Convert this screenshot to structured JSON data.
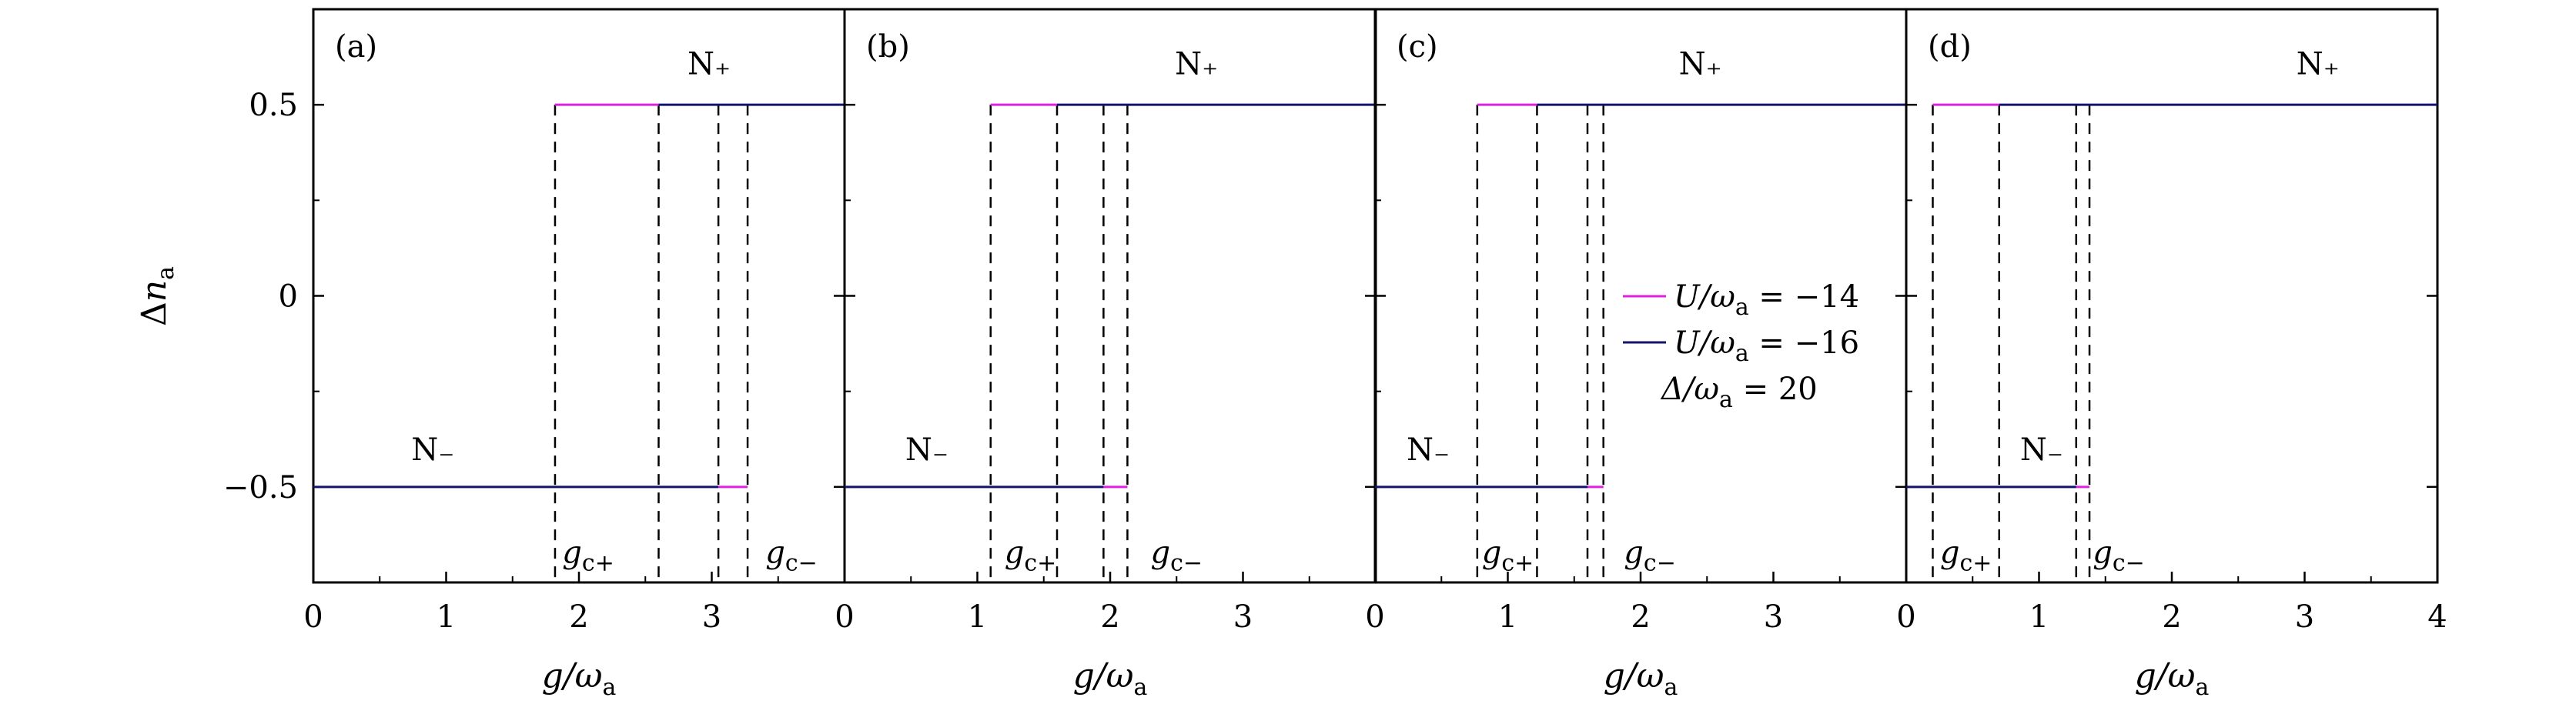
{
  "chart_data": {
    "type": "line",
    "ylabel": "Δn_a",
    "xlabel": "g/ω_a",
    "ylim": [
      -0.75,
      0.75
    ],
    "yticks": [
      0.5,
      0,
      -0.5
    ],
    "ytick_labels": [
      "0.5",
      "0",
      "−0.5"
    ],
    "legend": {
      "placement": "center (panel c)",
      "entries": [
        {
          "label": "U/ω_a = −14",
          "color": "#e020e0"
        },
        {
          "label": "U/ω_a = −16",
          "color": "#14146e"
        }
      ],
      "extra_text": "Δ/ω_a = 20"
    },
    "panels": [
      {
        "label": "(a)",
        "xlim": [
          0,
          4
        ],
        "xticks": [
          0,
          1,
          2,
          3
        ],
        "xtick_labels": [
          "0",
          "1",
          "2",
          "3"
        ],
        "series": [
          {
            "name": "U/ω_a = −14",
            "x": [
              0,
              1.82,
              1.82,
              4
            ],
            "y": [
              -0.5,
              -0.5,
              0.5,
              0.5
            ],
            "lower_end": 3.27
          },
          {
            "name": "U/ω_a = −16",
            "x": [
              0,
              3.05,
              3.05,
              4
            ],
            "y": [
              -0.5,
              -0.5,
              0.5,
              0.5
            ],
            "upper_start": 2.6
          }
        ],
        "dashed_lines_x": [
          1.82,
          2.6,
          3.05,
          3.27
        ],
        "annotations": [
          {
            "text": "N₊",
            "x": 2.98,
            "y": 0.58
          },
          {
            "text": "N₋",
            "x": 0.9,
            "y": -0.43
          },
          {
            "text": "g_c+",
            "x": 2.07,
            "y": -0.67
          },
          {
            "text": "g_c−",
            "x": 3.6,
            "y": -0.67
          }
        ]
      },
      {
        "label": "(b)",
        "xlim": [
          0,
          4
        ],
        "xticks": [
          0,
          1,
          2,
          3
        ],
        "xtick_labels": [
          "0",
          "1",
          "2",
          "3"
        ],
        "series": [
          {
            "name": "U/ω_a = −14",
            "x": [
              0,
              1.1,
              1.1,
              4
            ],
            "y": [
              -0.5,
              -0.5,
              0.5,
              0.5
            ],
            "lower_end": 2.13
          },
          {
            "name": "U/ω_a = −16",
            "x": [
              0,
              1.95,
              1.95,
              4
            ],
            "y": [
              -0.5,
              -0.5,
              0.5,
              0.5
            ],
            "upper_start": 1.6
          }
        ],
        "dashed_lines_x": [
          1.1,
          1.6,
          1.95,
          2.13
        ],
        "annotations": [
          {
            "text": "N₊",
            "x": 2.65,
            "y": 0.58
          },
          {
            "text": "N₋",
            "x": 0.62,
            "y": -0.43
          },
          {
            "text": "g_c+",
            "x": 1.4,
            "y": -0.67
          },
          {
            "text": "g_c−",
            "x": 2.5,
            "y": -0.67
          }
        ]
      },
      {
        "label": "(c)",
        "xlim": [
          0,
          4
        ],
        "xticks": [
          0,
          1,
          2,
          3
        ],
        "xtick_labels": [
          "0",
          "1",
          "2",
          "3"
        ],
        "series": [
          {
            "name": "U/ω_a = −14",
            "x": [
              0,
              0.77,
              0.77,
              4
            ],
            "y": [
              -0.5,
              -0.5,
              0.5,
              0.5
            ],
            "lower_end": 1.72
          },
          {
            "name": "U/ω_a = −16",
            "x": [
              0,
              1.6,
              1.6,
              4
            ],
            "y": [
              -0.5,
              -0.5,
              0.5,
              0.5
            ],
            "upper_start": 1.22
          }
        ],
        "dashed_lines_x": [
          0.77,
          1.22,
          1.6,
          1.72
        ],
        "annotations": [
          {
            "text": "N₊",
            "x": 2.45,
            "y": 0.58
          },
          {
            "text": "N₋",
            "x": 0.4,
            "y": -0.43
          },
          {
            "text": "g_c+",
            "x": 1.0,
            "y": -0.67
          },
          {
            "text": "g_c−",
            "x": 2.07,
            "y": -0.67
          }
        ]
      },
      {
        "label": "(d)",
        "xlim": [
          0,
          4
        ],
        "xticks": [
          0,
          1,
          2,
          3,
          4
        ],
        "xtick_labels": [
          "0",
          "1",
          "2",
          "3",
          "4"
        ],
        "series": [
          {
            "name": "U/ω_a = −14",
            "x": [
              0,
              0.2,
              0.2,
              4
            ],
            "y": [
              -0.5,
              -0.5,
              0.5,
              0.5
            ],
            "lower_end": 1.38
          },
          {
            "name": "U/ω_a = −16",
            "x": [
              0,
              1.28,
              1.28,
              4
            ],
            "y": [
              -0.5,
              -0.5,
              0.5,
              0.5
            ],
            "upper_start": 0.7
          }
        ],
        "dashed_lines_x": [
          0.2,
          0.7,
          1.28,
          1.38
        ],
        "annotations": [
          {
            "text": "N₊",
            "x": 3.1,
            "y": 0.58
          },
          {
            "text": "N₋",
            "x": 1.02,
            "y": -0.43
          },
          {
            "text": "g_c+",
            "x": 0.45,
            "y": -0.67
          },
          {
            "text": "g_c−",
            "x": 1.6,
            "y": -0.67
          }
        ]
      }
    ]
  }
}
